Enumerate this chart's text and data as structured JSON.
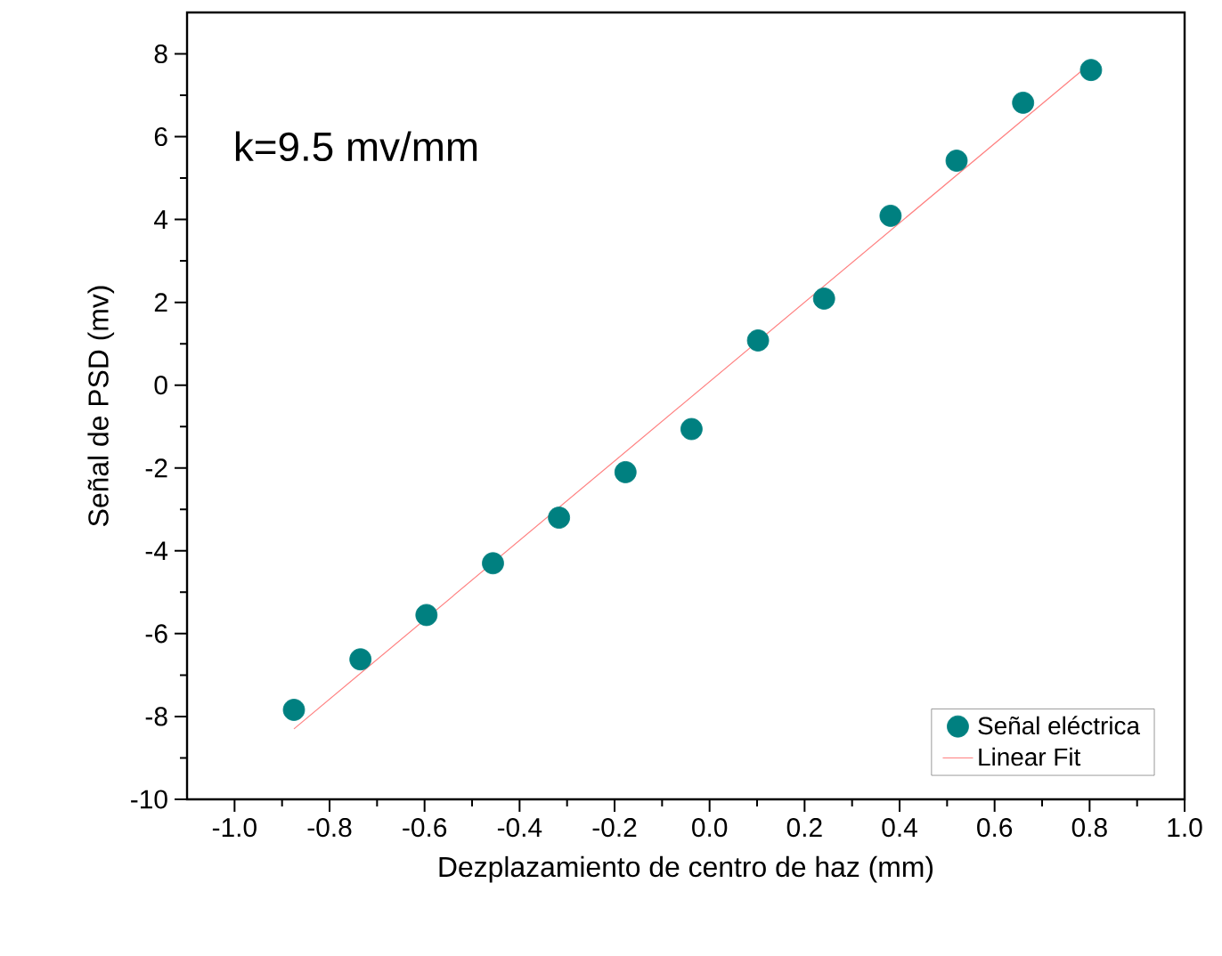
{
  "chart_data": {
    "type": "scatter",
    "xlabel": "Dezplazamiento de centro de haz (mm)",
    "ylabel": "Señal de PSD (mv)",
    "annotations": [
      "k=9.5 mv/mm"
    ],
    "xlim": [
      -1.1,
      1.0
    ],
    "xticks": [
      {
        "value": -1,
        "label": "-1.0"
      },
      -0.8,
      -0.6,
      -0.4,
      -0.2,
      {
        "value": 0,
        "label": "0.0"
      },
      0.2,
      0.4,
      0.6,
      0.8,
      {
        "value": 1,
        "label": "1.0"
      }
    ],
    "ylim": [
      -10,
      9
    ],
    "yticks": [
      -10,
      -8,
      -6,
      -4,
      -2,
      0,
      2,
      4,
      6,
      8
    ],
    "grid": false,
    "legend": "bottom right",
    "marker": "circle",
    "series": [
      {
        "name": "Señal eléctrica",
        "color": "#008080",
        "x": [
          -0.875,
          -0.735,
          -0.596,
          -0.456,
          -0.317,
          -0.177,
          -0.038,
          0.102,
          0.241,
          0.381,
          0.52,
          0.66,
          0.803
        ],
        "values": [
          -7.84,
          -6.62,
          -5.55,
          -4.3,
          -3.2,
          -2.1,
          -1.06,
          1.08,
          2.09,
          4.09,
          5.42,
          6.82,
          7.61
        ]
      },
      {
        "name": "Linear Fit",
        "type": "line",
        "color": "#ff8080",
        "line_style": "solid",
        "marker": "none",
        "x": [
          -0.875,
          0.803
        ],
        "values": [
          -8.3,
          7.78
        ]
      }
    ]
  }
}
